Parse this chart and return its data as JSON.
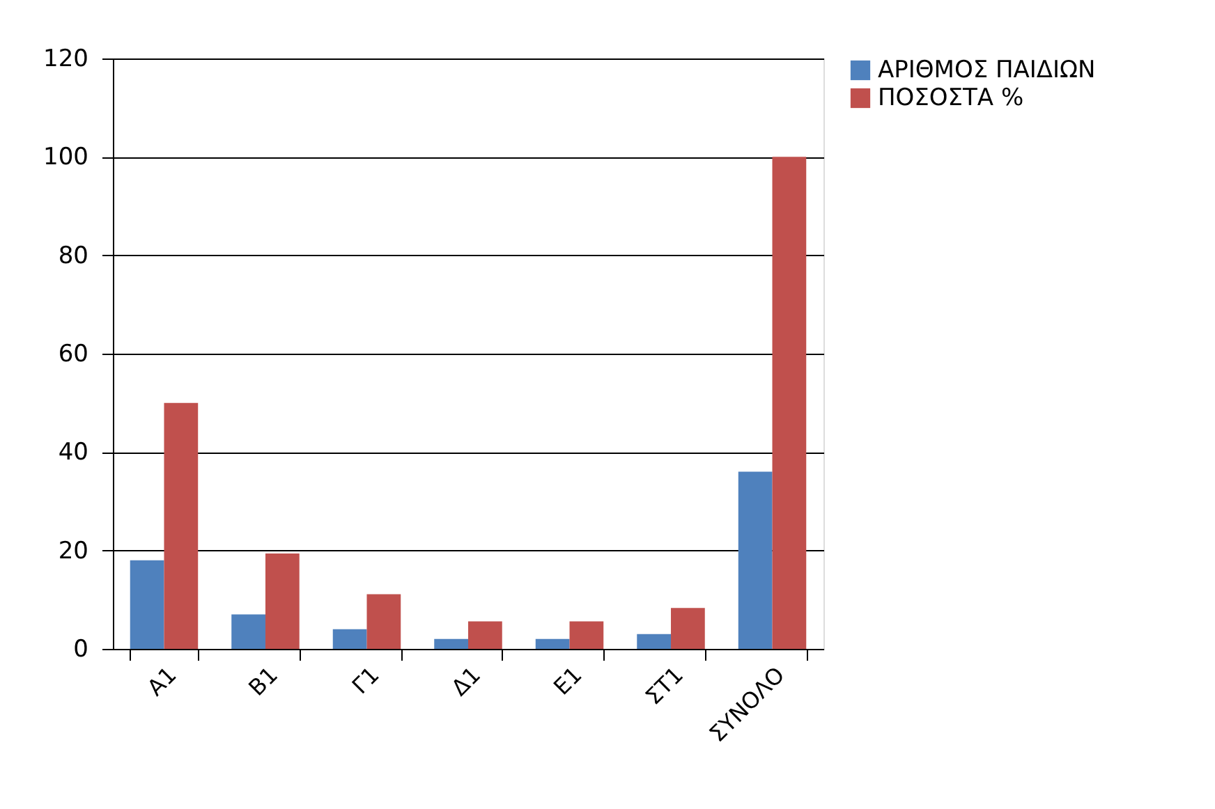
{
  "chart_data": {
    "type": "bar",
    "categories": [
      "Α1",
      "Β1",
      "Γ1",
      "Δ1",
      "Ε1",
      "ΣΤ1",
      "ΣΥΝΟΛΟ"
    ],
    "series": [
      {
        "name": "ΑΡΙΘΜΟΣ ΠΑΙΔΙΩΝ",
        "color": "#4f81bd",
        "values": [
          18,
          7,
          4,
          2,
          2,
          3,
          36
        ]
      },
      {
        "name": "ΠΟΣΟΣΤΑ %",
        "color": "#c0504d",
        "values": [
          50,
          19.4,
          11.1,
          5.6,
          5.6,
          8.3,
          100
        ]
      }
    ],
    "ylim": [
      0,
      120
    ],
    "yticks": [
      0,
      20,
      40,
      60,
      80,
      100,
      120
    ],
    "grid": "y",
    "legend": "right"
  }
}
